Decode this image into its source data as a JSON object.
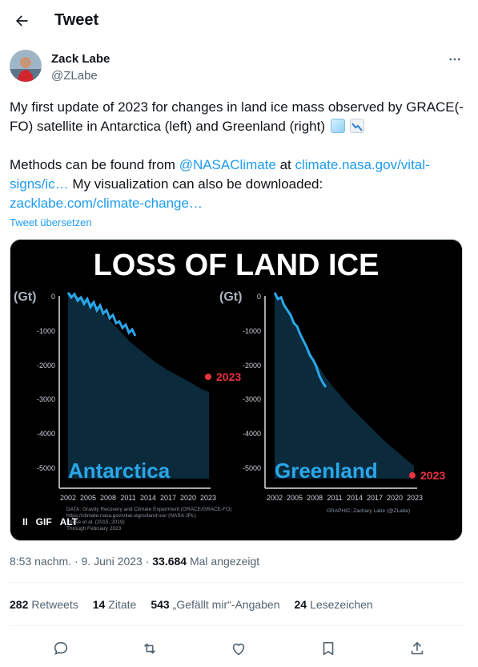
{
  "header": {
    "title": "Tweet"
  },
  "author": {
    "name": "Zack Labe",
    "handle": "@ZLabe"
  },
  "tweet": {
    "line1": "My first update of 2023 for changes in land ice mass observed by GRACE(-FO) satellite in Antarctica (left) and Greenland (right)",
    "methods_prefix": "Methods can be found from ",
    "mention": "@NASAClimate",
    "methods_mid": " at ",
    "link1": "climate.nasa.gov/vital-signs/ic…",
    "methods_suffix": " My visualization can also be downloaded:",
    "link2": "zacklabe.com/climate-change…",
    "translate": "Tweet übersetzen"
  },
  "media": {
    "title": "LOSS OF LAND ICE",
    "unit_left": "(Gt)",
    "unit_right": "(Gt)",
    "label_antarctica": "Antarctica",
    "label_greenland": "Greenland",
    "year_marker_left": "2023",
    "year_marker_right": "2023",
    "yticks": [
      "0",
      "-1000",
      "-2000",
      "-3000",
      "-4000",
      "-5000"
    ],
    "xticks": [
      "2002",
      "2005",
      "2008",
      "2011",
      "2014",
      "2017",
      "2020",
      "2023"
    ],
    "credit_data_1": "DATA: Gravity Recovery and Climate Experiment (GRACE/GRACE-FO)",
    "credit_data_2": "https://climate.nasa.gov/vital-signs/land-ice/ (NASA JPL)",
    "credit_data_3": "Wiese et al. (2015, 2019)",
    "credit_data_4": "Through February 2023",
    "credit_graphic": "GRAPHIC: Zachary Labe (@ZLabe)",
    "controls": {
      "pause": "II",
      "gif": "GIF",
      "alt": "ALT"
    },
    "colors": {
      "line": "#2aa7e8",
      "fill": "#0b2a3c",
      "marker": "#e8333f"
    }
  },
  "meta": {
    "time": "8:53 nachm.",
    "date": "9. Juni 2023",
    "views_num": "33.684",
    "views_label": "Mal angezeigt",
    "sep": " · "
  },
  "stats": [
    {
      "num": "282",
      "label": "Retweets"
    },
    {
      "num": "14",
      "label": "Zitate"
    },
    {
      "num": "543",
      "label": "„Gefällt mir“-Angaben"
    },
    {
      "num": "24",
      "label": "Lesezeichen"
    }
  ]
}
